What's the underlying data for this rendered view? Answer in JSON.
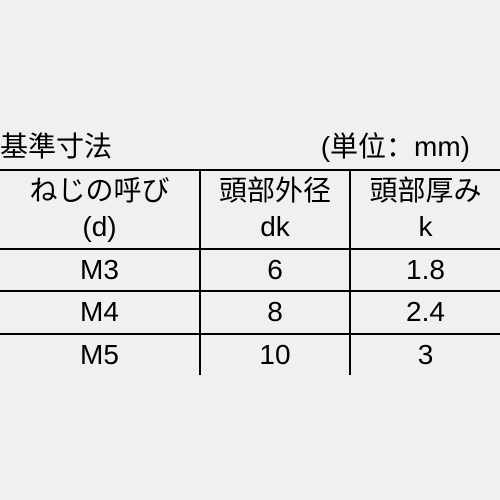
{
  "header": {
    "title": "基準寸法",
    "unit": "(単位：mm)"
  },
  "table": {
    "columns": [
      {
        "line1": "ねじの呼び",
        "line2": "(d)"
      },
      {
        "line1": "頭部外径",
        "line2": "dk"
      },
      {
        "line1": "頭部厚み",
        "line2": "k"
      }
    ],
    "rows": [
      [
        "M3",
        "6",
        "1.8"
      ],
      [
        "M4",
        "8",
        "2.4"
      ],
      [
        "M5",
        "10",
        "3"
      ]
    ],
    "border_color": "#000000",
    "background_color": "#f0f0f0",
    "font_size_pt": 28
  }
}
